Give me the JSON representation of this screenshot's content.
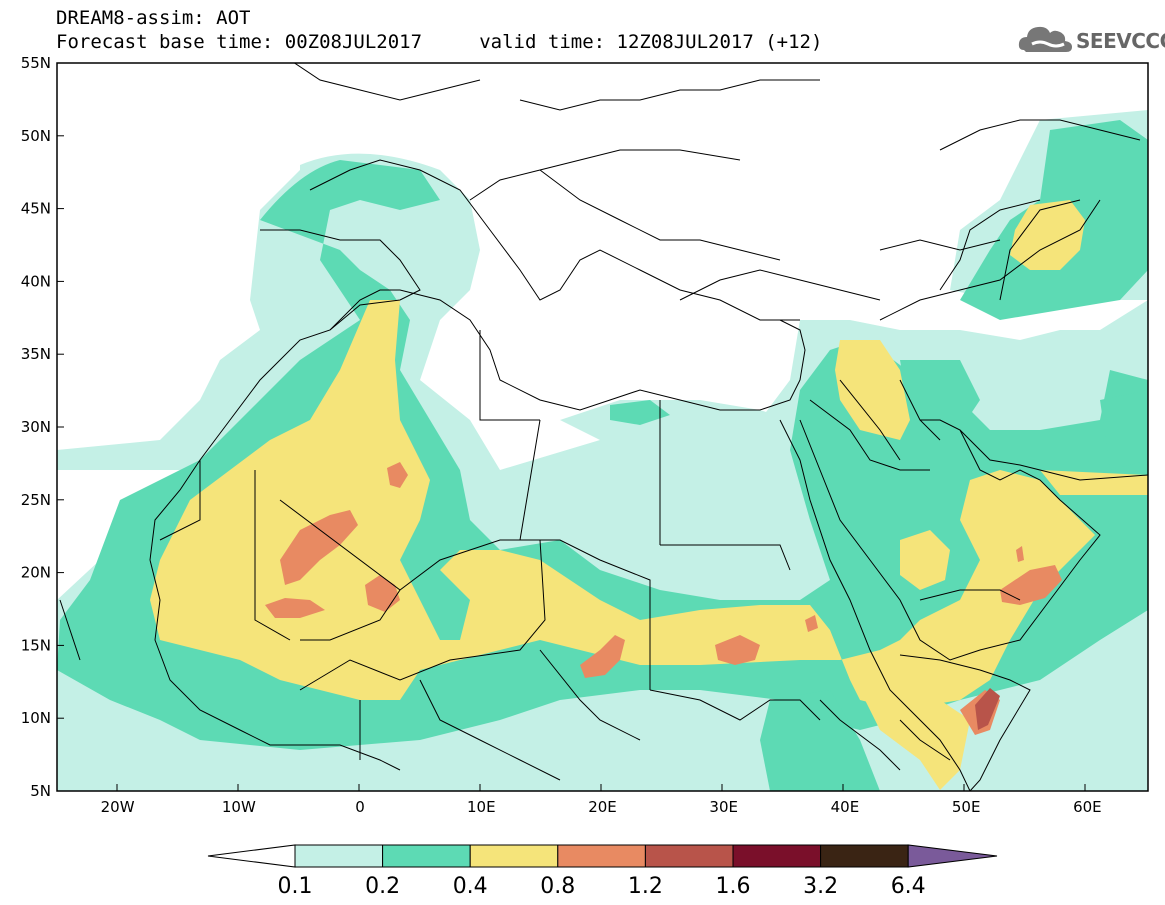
{
  "header": {
    "title_line1": "DREAM8-assim: AOT",
    "title_line2": "Forecast base time: 00Z08JUL2017     valid time: 12Z08JUL2017 (+12)",
    "logo_text": "SEEVCCC"
  },
  "map": {
    "lon_range": [
      -25,
      65
    ],
    "lat_range": [
      5,
      55
    ],
    "x_ticks": [
      {
        "lon": -20,
        "label": "20W"
      },
      {
        "lon": -10,
        "label": "10W"
      },
      {
        "lon": 0,
        "label": "0"
      },
      {
        "lon": 10,
        "label": "10E"
      },
      {
        "lon": 20,
        "label": "20E"
      },
      {
        "lon": 30,
        "label": "30E"
      },
      {
        "lon": 40,
        "label": "40E"
      },
      {
        "lon": 50,
        "label": "50E"
      },
      {
        "lon": 60,
        "label": "60E"
      }
    ],
    "y_ticks": [
      {
        "lat": 55,
        "label": "55N"
      },
      {
        "lat": 50,
        "label": "50N"
      },
      {
        "lat": 45,
        "label": "45N"
      },
      {
        "lat": 40,
        "label": "40N"
      },
      {
        "lat": 35,
        "label": "35N"
      },
      {
        "lat": 30,
        "label": "30N"
      },
      {
        "lat": 25,
        "label": "25N"
      },
      {
        "lat": 20,
        "label": "20N"
      },
      {
        "lat": 15,
        "label": "15N"
      },
      {
        "lat": 10,
        "label": "10N"
      },
      {
        "lat": 5,
        "label": "5N"
      }
    ]
  },
  "colorbar": {
    "levels": [
      "0.1",
      "0.2",
      "0.4",
      "0.8",
      "1.2",
      "1.6",
      "3.2",
      "6.4"
    ],
    "colors": [
      "#c4f0e6",
      "#5ddab4",
      "#f5e47a",
      "#e88a62",
      "#b8544a",
      "#7a0f2a",
      "#3a2414"
    ],
    "under_color": "#ffffff",
    "over_color": "#7a5a9a"
  }
}
